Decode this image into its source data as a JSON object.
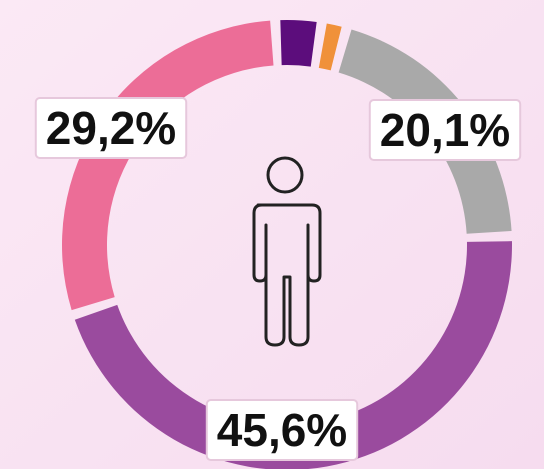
{
  "chart_data": {
    "type": "donut",
    "categories": [
      null,
      null,
      null,
      null,
      null
    ],
    "values": [
      3.3,
      1.8,
      20.1,
      45.6,
      29.2
    ],
    "value_labels": [
      null,
      null,
      "20,1%",
      "45,6%",
      "29,2%"
    ],
    "colors": [
      "#5c0d7c",
      "#f0913a",
      "#a9a9a9",
      "#9a4b9e",
      "#ec6d97"
    ]
  }
}
